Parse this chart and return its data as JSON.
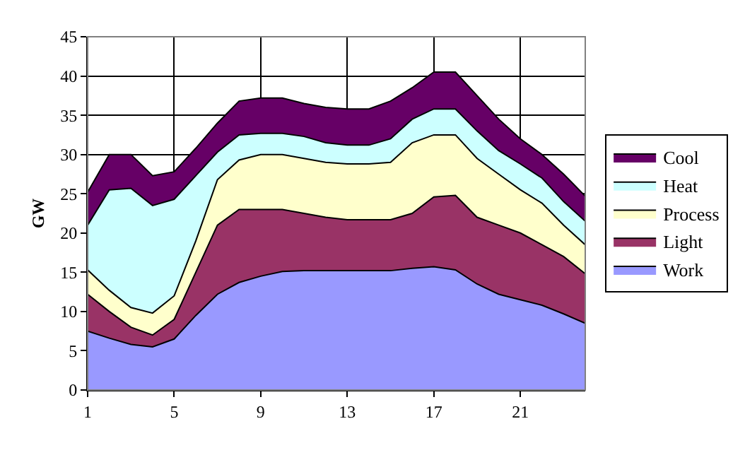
{
  "chart_data": {
    "type": "area",
    "stacked": true,
    "ylabel": "GW",
    "x": [
      1,
      2,
      3,
      4,
      5,
      6,
      7,
      8,
      9,
      10,
      11,
      12,
      13,
      14,
      15,
      16,
      17,
      18,
      19,
      20,
      21,
      22,
      23,
      24
    ],
    "series": [
      {
        "name": "Work",
        "color": "#9999ff",
        "values": [
          7.5,
          6.6,
          5.8,
          5.5,
          6.5,
          9.5,
          12.2,
          13.7,
          14.5,
          15.1,
          15.2,
          15.2,
          15.2,
          15.2,
          15.2,
          15.5,
          15.7,
          15.3,
          13.5,
          12.2,
          11.5,
          10.8,
          9.7,
          8.5
        ]
      },
      {
        "name": "Light",
        "color": "#993366",
        "values": [
          4.7,
          3.4,
          2.2,
          1.5,
          2.5,
          5.5,
          8.8,
          9.3,
          8.5,
          7.9,
          7.3,
          6.8,
          6.5,
          6.5,
          6.5,
          7.0,
          8.9,
          9.5,
          8.5,
          8.8,
          8.5,
          7.7,
          7.3,
          6.3
        ]
      },
      {
        "name": "Process",
        "color": "#ffffcc",
        "values": [
          3.1,
          2.7,
          2.5,
          2.8,
          3.0,
          4.0,
          5.8,
          6.3,
          7.0,
          7.0,
          7.0,
          7.0,
          7.1,
          7.1,
          7.3,
          9.0,
          7.9,
          7.7,
          7.5,
          6.5,
          5.5,
          5.3,
          4.0,
          3.7
        ]
      },
      {
        "name": "Heat",
        "color": "#ccffff",
        "values": [
          5.7,
          12.8,
          15.2,
          13.7,
          12.3,
          8.3,
          3.5,
          3.2,
          2.7,
          2.7,
          2.8,
          2.5,
          2.4,
          2.4,
          3.0,
          3.0,
          3.3,
          3.3,
          3.5,
          3.0,
          3.3,
          3.2,
          3.0,
          3.0
        ]
      },
      {
        "name": "Cool",
        "color": "#660066",
        "values": [
          4.2,
          4.5,
          4.3,
          3.8,
          3.5,
          3.5,
          3.7,
          4.3,
          4.5,
          4.5,
          4.2,
          4.5,
          4.6,
          4.6,
          4.8,
          4.0,
          4.7,
          4.7,
          4.5,
          4.0,
          3.2,
          3.0,
          3.5,
          3.2
        ]
      }
    ],
    "xlim": [
      1,
      24
    ],
    "xticks": [
      1,
      5,
      9,
      13,
      17,
      21
    ],
    "ylim": [
      0,
      45
    ],
    "yticks": [
      0,
      5,
      10,
      15,
      20,
      25,
      30,
      35,
      40,
      45
    ],
    "grid": true,
    "legend": "right"
  }
}
